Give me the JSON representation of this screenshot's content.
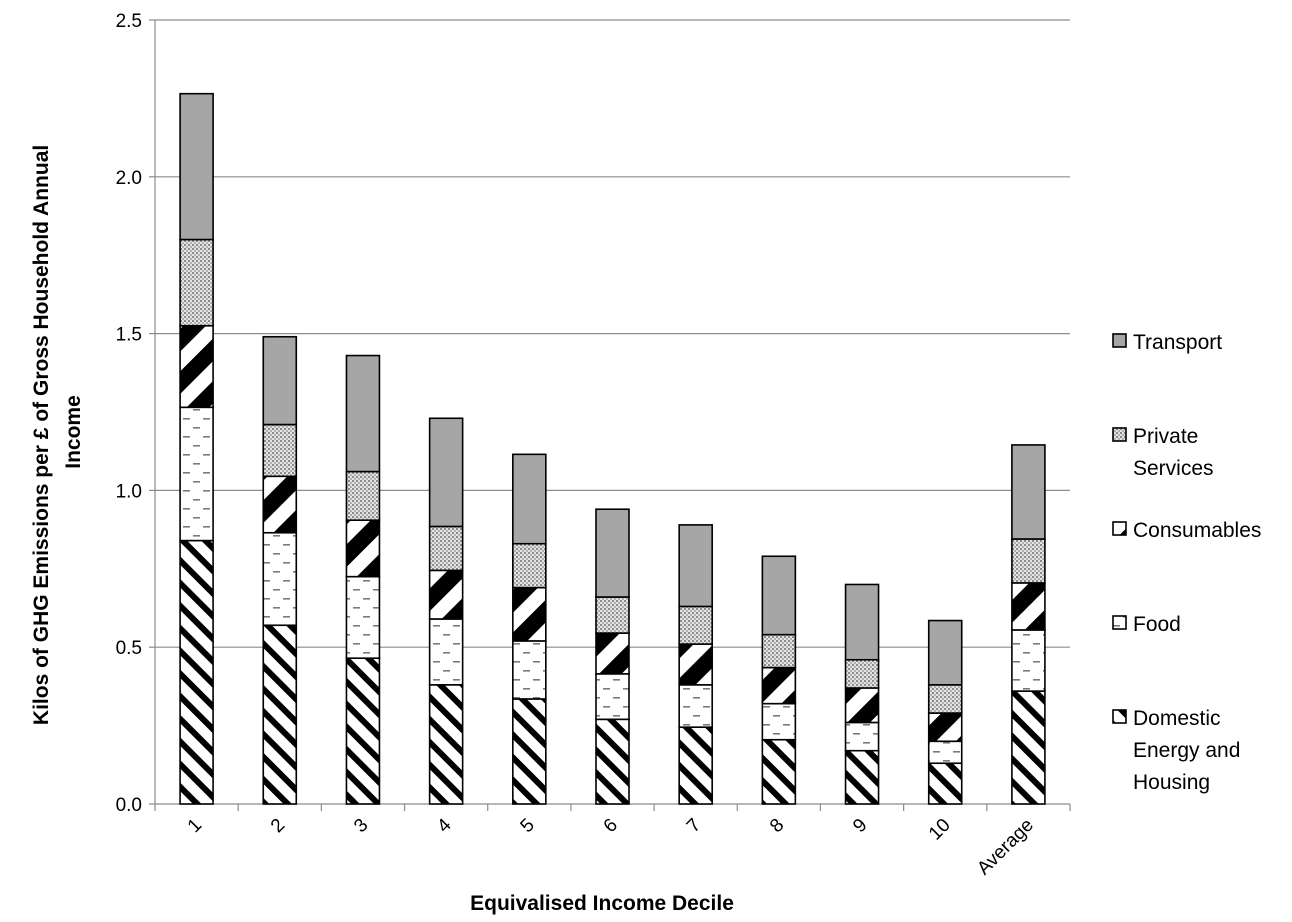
{
  "chart_data": {
    "type": "bar",
    "stacked": true,
    "title": "",
    "xlabel": "Equivalised Income Decile",
    "ylabel_lines": [
      "Kilos of GHG Emissions per £ of Gross Household Annual",
      "Income"
    ],
    "ylim": [
      0,
      2.5
    ],
    "yticks": [
      "0.0",
      "0.5",
      "1.0",
      "1.5",
      "2.0",
      "2.5"
    ],
    "grid": "horizontal",
    "legend_position": "right",
    "categories": [
      "1",
      "2",
      "3",
      "4",
      "5",
      "6",
      "7",
      "8",
      "9",
      "10",
      "Average"
    ],
    "series": [
      {
        "name": "Domestic Energy and Housing",
        "legend_lines": [
          "Domestic",
          "Energy and",
          "Housing"
        ],
        "pattern": "diagonal-hatch",
        "color": "#ffffff",
        "values": [
          0.84,
          0.57,
          0.465,
          0.38,
          0.335,
          0.27,
          0.245,
          0.205,
          0.17,
          0.13,
          0.36
        ]
      },
      {
        "name": "Food",
        "legend_lines": [
          "Food"
        ],
        "pattern": "dashes",
        "color": "#ffffff",
        "values": [
          0.425,
          0.295,
          0.26,
          0.21,
          0.185,
          0.145,
          0.135,
          0.115,
          0.09,
          0.07,
          0.195
        ]
      },
      {
        "name": "Consumables",
        "legend_lines": [
          "Consumables"
        ],
        "pattern": "wide-diagonal-stripes",
        "color": "#000000",
        "values": [
          0.26,
          0.18,
          0.18,
          0.155,
          0.17,
          0.13,
          0.13,
          0.115,
          0.11,
          0.09,
          0.15
        ]
      },
      {
        "name": "Private Services",
        "legend_lines": [
          "Private",
          "Services"
        ],
        "pattern": "dots",
        "color": "#d0d0d0",
        "values": [
          0.275,
          0.165,
          0.155,
          0.14,
          0.14,
          0.115,
          0.12,
          0.105,
          0.09,
          0.09,
          0.14
        ]
      },
      {
        "name": "Transport",
        "legend_lines": [
          "Transport"
        ],
        "pattern": "solid",
        "color": "#a6a6a6",
        "values": [
          0.465,
          0.28,
          0.37,
          0.345,
          0.285,
          0.28,
          0.26,
          0.25,
          0.24,
          0.205,
          0.3
        ]
      }
    ]
  }
}
